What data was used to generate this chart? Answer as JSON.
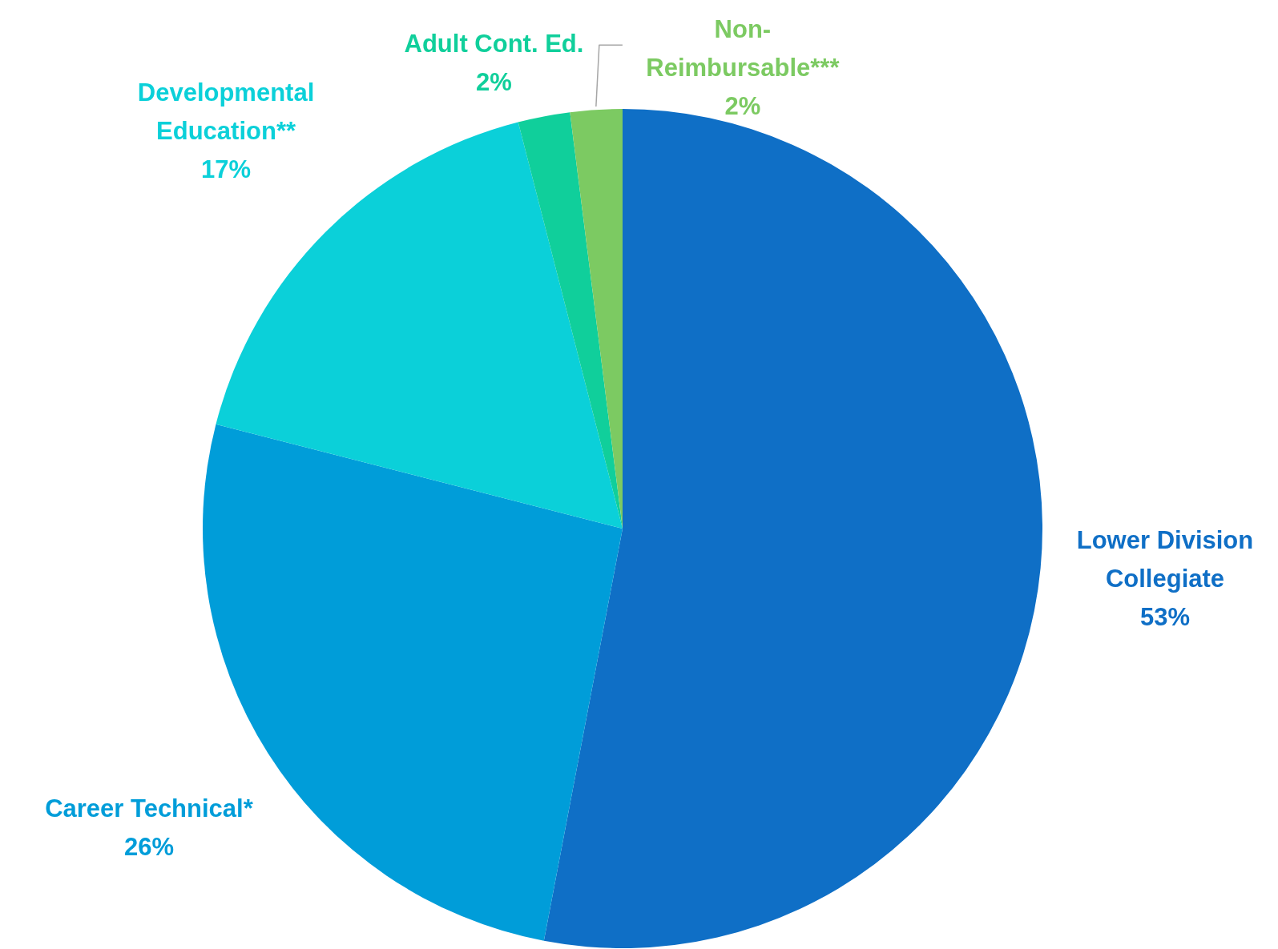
{
  "chart_data": {
    "type": "pie",
    "categories": [
      "Lower Division Collegiate",
      "Career Technical*",
      "Developmental Education**",
      "Adult Cont. Ed.",
      "Non-Reimbursable***"
    ],
    "values": [
      53,
      26,
      17,
      2,
      2
    ],
    "value_labels": [
      "53%",
      "26%",
      "17%",
      "2%",
      "2%"
    ],
    "colors": [
      "#0f6fc6",
      "#009dd9",
      "#0bd0d9",
      "#10cf9b",
      "#7cca62"
    ]
  }
}
